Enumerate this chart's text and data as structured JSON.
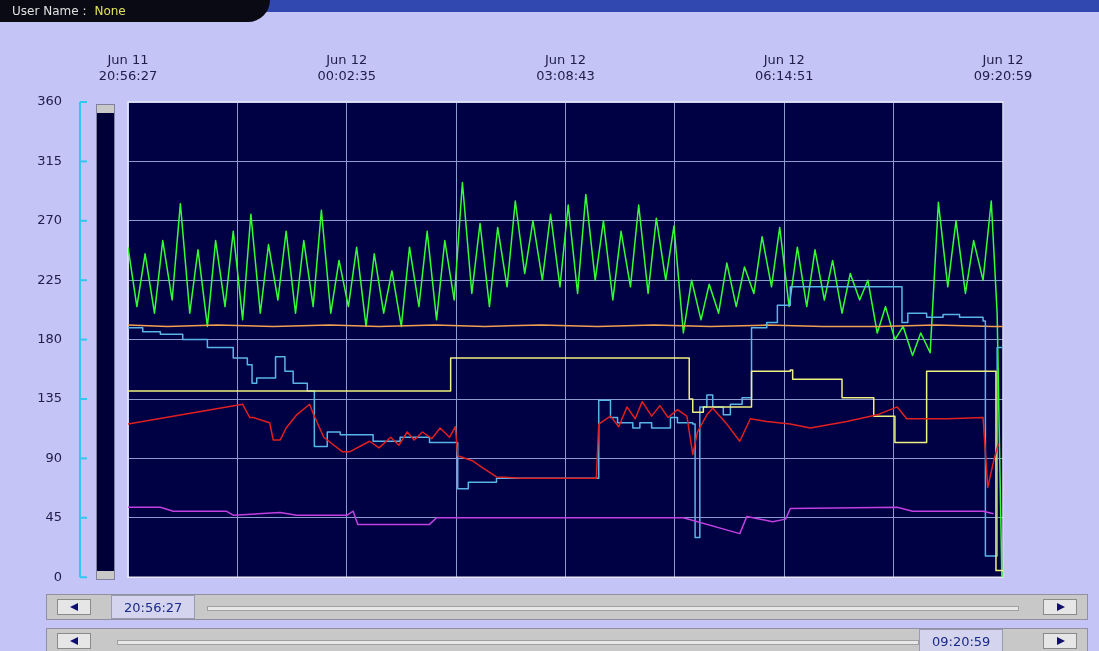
{
  "chart_data": {
    "type": "line",
    "xlim": [
      "--06-11T20:56:27",
      "--06-12T09:20:59"
    ],
    "ylim": [
      0,
      360
    ],
    "xticks": [
      {
        "value": "--06-11T20:56:27",
        "label": "Jun 11\n20:56:27"
      },
      {
        "value": "--06-11T22:29:31",
        "label": null
      },
      {
        "value": "--06-12T00:02:35",
        "label": "Jun 12\n00:02:35"
      },
      {
        "value": "--06-12T01:35:39",
        "label": null
      },
      {
        "value": "--06-12T03:08:43",
        "label": "Jun 12\n03:08:43"
      },
      {
        "value": "--06-12T04:41:47",
        "label": null
      },
      {
        "value": "--06-12T06:14:51",
        "label": "Jun 12\n06:14:51"
      },
      {
        "value": "--06-12T07:47:55",
        "label": null
      },
      {
        "value": "--06-12T09:20:59",
        "label": "Jun 12\n09:20:59"
      }
    ],
    "yticks": [
      0,
      45,
      90,
      135,
      180,
      225,
      270,
      315,
      360
    ],
    "grid": true,
    "marker": "none",
    "line_style": "solid",
    "annotations": [
      "User Name :",
      "None",
      "20:56:27",
      "09:20:59"
    ],
    "series": [
      {
        "type": "line",
        "color": "#c040e0",
        "x": [
          "--06-11T20:56:27",
          "--06-11T21:24",
          "--06-11T21:35",
          "--06-11T22:20",
          "--06-11T22:26",
          "--06-11T23:06",
          "--06-11T23:20",
          "--06-12T00:03",
          "--06-12T00:08",
          "--06-12T00:12",
          "--06-12T01:13",
          "--06-12T01:19",
          "--06-12T03:13",
          "--06-12T04:49",
          "--06-12T05:37",
          "--06-12T05:43",
          "--06-12T06:05",
          "--06-12T06:16",
          "--06-12T06:20",
          "--06-12T07:51",
          "--06-12T08:04",
          "--06-12T09:04",
          "--06-12T09:13"
        ],
        "values": [
          53,
          53,
          50,
          50,
          47,
          49,
          47,
          47,
          50,
          40,
          40,
          45,
          45,
          45,
          33,
          46,
          42,
          44,
          52,
          53,
          50,
          50,
          48
        ]
      },
      {
        "type": "line",
        "color": "#e02020",
        "x": [
          "--06-11T20:56:27",
          "--06-11T22:34",
          "--06-11T22:40",
          "--06-11T22:43",
          "--06-11T22:57",
          "--06-11T23:00",
          "--06-11T23:06",
          "--06-11T23:11",
          "--06-11T23:20",
          "--06-11T23:31",
          "--06-11T23:34",
          "--06-11T23:43",
          "--06-11T23:59",
          "--06-12T00:05",
          "--06-12T00:22",
          "--06-12T00:30",
          "--06-12T00:40",
          "--06-12T00:47",
          "--06-12T00:54",
          "--06-12T01:00",
          "--06-12T01:07",
          "--06-12T01:15",
          "--06-12T01:22",
          "--06-12T01:30",
          "--06-12T01:35",
          "--06-12T01:37",
          "--06-12T01:50",
          "--06-12T01:58",
          "--06-12T02:10",
          "--06-12T02:32",
          "--06-12T03:35",
          "--06-12T03:37",
          "--06-12T03:47",
          "--06-12T03:54",
          "--06-12T04:01",
          "--06-12T04:08",
          "--06-12T04:14",
          "--06-12T04:22",
          "--06-12T04:29",
          "--06-12T04:36",
          "--06-12T04:44",
          "--06-12T04:52",
          "--06-12T04:57",
          "--06-12T05:01",
          "--06-12T05:09",
          "--06-12T05:14",
          "--06-12T05:26",
          "--06-12T05:37",
          "--06-12T05:46",
          "--06-12T06:00",
          "--06-12T06:20",
          "--06-12T06:37",
          "--06-12T07:08",
          "--06-12T07:34",
          "--06-12T07:51",
          "--06-12T07:59",
          "--06-12T08:34",
          "--06-12T09:04",
          "--06-12T09:06",
          "--06-12T09:08",
          "--06-12T09:13",
          "--06-12T09:17"
        ],
        "values": [
          116,
          131,
          121,
          121,
          117,
          104,
          104,
          113,
          123,
          131,
          124,
          106,
          95,
          95,
          103,
          98,
          106,
          100,
          110,
          104,
          110,
          105,
          113,
          106,
          114,
          92,
          88,
          83,
          76,
          75,
          75,
          116,
          122,
          114,
          129,
          120,
          133,
          122,
          130,
          121,
          127,
          122,
          93,
          110,
          123,
          128,
          116,
          103,
          120,
          118,
          116,
          113,
          118,
          123,
          129,
          120,
          120,
          121,
          95,
          68,
          88,
          101
        ]
      },
      {
        "type": "step",
        "color": "#f0f080",
        "x": [
          "--06-11T20:56:27",
          "--06-12T01:31",
          "--06-12T04:54",
          "--06-12T04:57",
          "--06-12T05:06",
          "--06-12T05:47",
          "--06-12T06:20",
          "--06-12T06:22",
          "--06-12T07:04",
          "--06-12T07:31",
          "--06-12T07:49",
          "--06-12T08:16",
          "--06-12T09:15",
          "--06-12T09:20:59"
        ],
        "values": [
          141,
          166,
          135,
          125,
          129,
          156,
          157,
          150,
          136,
          122,
          102,
          156,
          5,
          5
        ]
      },
      {
        "type": "step",
        "color": "#5ab4e6",
        "x": [
          "--06-11T20:56:27",
          "--06-11T21:09",
          "--06-11T21:24",
          "--06-11T21:43",
          "--06-11T22:04",
          "--06-11T22:26",
          "--06-11T22:38",
          "--06-11T22:42",
          "--06-11T22:46",
          "--06-11T23:02",
          "--06-11T23:10",
          "--06-11T23:17",
          "--06-11T23:29",
          "--06-11T23:35",
          "--06-11T23:46",
          "--06-11T23:57",
          "--06-12T00:25",
          "--06-12T00:48",
          "--06-12T01:13",
          "--06-12T01:37",
          "--06-12T01:46",
          "--06-12T02:10",
          "--06-12T03:37",
          "--06-12T03:47",
          "--06-12T03:53",
          "--06-12T04:06",
          "--06-12T04:12",
          "--06-12T04:22",
          "--06-12T04:38",
          "--06-12T04:44",
          "--06-12T04:57",
          "--06-12T04:59",
          "--06-12T05:03",
          "--06-12T05:09",
          "--06-12T05:14",
          "--06-12T05:23",
          "--06-12T05:29",
          "--06-12T05:39",
          "--06-12T05:47",
          "--06-12T06:00",
          "--06-12T06:09",
          "--06-12T06:20",
          "--06-12T07:55",
          "--06-12T08:00",
          "--06-12T08:16",
          "--06-12T08:30",
          "--06-12T08:44",
          "--06-12T09:04",
          "--06-12T09:06",
          "--06-12T09:16",
          "--06-12T09:20:59"
        ],
        "values": [
          189,
          186,
          184,
          180,
          174,
          166,
          161,
          147,
          151,
          167,
          156,
          147,
          141,
          99,
          110,
          108,
          103,
          106,
          102,
          67,
          72,
          75,
          134,
          121,
          117,
          113,
          117,
          113,
          121,
          117,
          116,
          30,
          129,
          138,
          129,
          123,
          131,
          136,
          189,
          193,
          206,
          220,
          193,
          200,
          197,
          199,
          197,
          194,
          16,
          174,
          174
        ]
      },
      {
        "type": "line",
        "color": "#f0a050",
        "x": [
          "--06-11T20:56:27",
          "--06-11T21:30",
          "--06-11T22:12",
          "--06-11T23:00",
          "--06-11T23:48",
          "--06-12T00:30",
          "--06-12T01:18",
          "--06-12T02:00",
          "--06-12T02:48",
          "--06-12T03:36",
          "--06-12T04:24",
          "--06-12T05:12",
          "--06-12T06:00",
          "--06-12T06:48",
          "--06-12T07:36",
          "--06-12T08:24",
          "--06-12T09:12",
          "--06-12T09:20:59"
        ],
        "values": [
          191,
          190,
          191,
          190,
          191,
          190,
          191,
          190,
          191,
          190,
          191,
          190,
          191,
          190,
          190,
          191,
          190,
          190
        ]
      },
      {
        "type": "line",
        "color": "#33ff33",
        "x": [
          "--06-11T20:56:27",
          "--06-11T21:04",
          "--06-11T21:11",
          "--06-11T21:19",
          "--06-11T21:26",
          "--06-11T21:34",
          "--06-11T21:41",
          "--06-11T21:49",
          "--06-11T21:56",
          "--06-11T22:04",
          "--06-11T22:11",
          "--06-11T22:19",
          "--06-11T22:26",
          "--06-11T22:34",
          "--06-11T22:41",
          "--06-11T22:49",
          "--06-11T22:56",
          "--06-11T23:04",
          "--06-11T23:11",
          "--06-11T23:19",
          "--06-11T23:26",
          "--06-11T23:34",
          "--06-11T23:41",
          "--06-11T23:49",
          "--06-11T23:56",
          "--06-12T00:04",
          "--06-12T00:11",
          "--06-12T00:19",
          "--06-12T00:26",
          "--06-12T00:34",
          "--06-12T00:41",
          "--06-12T00:49",
          "--06-12T00:56",
          "--06-12T01:04",
          "--06-12T01:11",
          "--06-12T01:19",
          "--06-12T01:26",
          "--06-12T01:34",
          "--06-12T01:41",
          "--06-12T01:49",
          "--06-12T01:56",
          "--06-12T02:04",
          "--06-12T02:11",
          "--06-12T02:19",
          "--06-12T02:26",
          "--06-12T02:34",
          "--06-12T02:41",
          "--06-12T02:49",
          "--06-12T02:56",
          "--06-12T03:04",
          "--06-12T03:11",
          "--06-12T03:19",
          "--06-12T03:26",
          "--06-12T03:34",
          "--06-12T03:41",
          "--06-12T03:49",
          "--06-12T03:56",
          "--06-12T04:04",
          "--06-12T04:11",
          "--06-12T04:19",
          "--06-12T04:26",
          "--06-12T04:34",
          "--06-12T04:41",
          "--06-12T04:49",
          "--06-12T04:56",
          "--06-12T05:04",
          "--06-12T05:11",
          "--06-12T05:19",
          "--06-12T05:26",
          "--06-12T05:34",
          "--06-12T05:41",
          "--06-12T05:49",
          "--06-12T05:56",
          "--06-12T06:04",
          "--06-12T06:11",
          "--06-12T06:19",
          "--06-12T06:26",
          "--06-12T06:34",
          "--06-12T06:41",
          "--06-12T06:49",
          "--06-12T06:56",
          "--06-12T07:04",
          "--06-12T07:11",
          "--06-12T07:19",
          "--06-12T07:26",
          "--06-12T07:34",
          "--06-12T07:41",
          "--06-12T07:49",
          "--06-12T07:56",
          "--06-12T08:04",
          "--06-12T08:11",
          "--06-12T08:19",
          "--06-12T08:26",
          "--06-12T08:34",
          "--06-12T08:41",
          "--06-12T08:49",
          "--06-12T08:56",
          "--06-12T09:04",
          "--06-12T09:11",
          "--06-12T09:16",
          "--06-12T09:20"
        ],
        "values": [
          250,
          205,
          245,
          200,
          255,
          210,
          283,
          200,
          248,
          190,
          255,
          205,
          262,
          195,
          275,
          200,
          252,
          210,
          262,
          200,
          255,
          205,
          278,
          200,
          240,
          205,
          250,
          190,
          245,
          200,
          232,
          190,
          250,
          205,
          262,
          195,
          255,
          210,
          299,
          215,
          268,
          205,
          265,
          220,
          285,
          230,
          270,
          225,
          275,
          220,
          282,
          215,
          290,
          225,
          270,
          210,
          262,
          220,
          282,
          215,
          272,
          225,
          266,
          185,
          225,
          195,
          222,
          200,
          238,
          205,
          235,
          215,
          258,
          220,
          265,
          205,
          250,
          205,
          248,
          210,
          240,
          200,
          230,
          210,
          225,
          185,
          205,
          180,
          190,
          168,
          185,
          170,
          284,
          220,
          270,
          215,
          255,
          225,
          285,
          200,
          0
        ]
      }
    ]
  }
}
